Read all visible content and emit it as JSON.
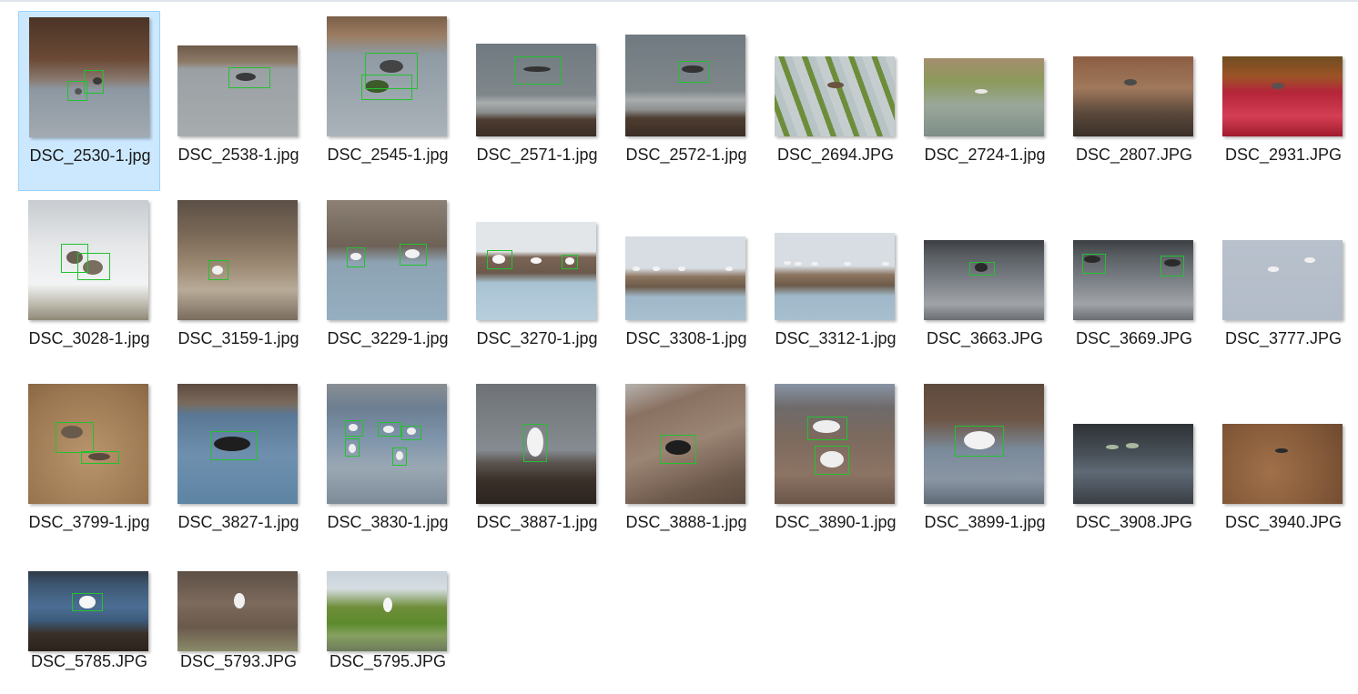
{
  "files": [
    {
      "name": "DSC_2530-1.jpg",
      "selected": true,
      "scene": "brown-rocks-water"
    },
    {
      "name": "DSC_2538-1.jpg",
      "selected": false,
      "scene": "grey-water"
    },
    {
      "name": "DSC_2545-1.jpg",
      "selected": false,
      "scene": "grey-water-duck"
    },
    {
      "name": "DSC_2571-1.jpg",
      "selected": false,
      "scene": "grey-sky-flight"
    },
    {
      "name": "DSC_2572-1.jpg",
      "selected": false,
      "scene": "grey-sky-flight"
    },
    {
      "name": "DSC_2694.JPG",
      "selected": false,
      "scene": "rice-paddy"
    },
    {
      "name": "DSC_2724-1.jpg",
      "selected": false,
      "scene": "reeds-stream"
    },
    {
      "name": "DSC_2807.JPG",
      "selected": false,
      "scene": "brown-grass"
    },
    {
      "name": "DSC_2931.JPG",
      "selected": false,
      "scene": "red-grass"
    },
    {
      "name": "DSC_3028-1.jpg",
      "selected": false,
      "scene": "white-shore"
    },
    {
      "name": "DSC_3159-1.jpg",
      "selected": false,
      "scene": "mudflat"
    },
    {
      "name": "DSC_3229-1.jpg",
      "selected": false,
      "scene": "bank-water"
    },
    {
      "name": "DSC_3270-1.jpg",
      "selected": false,
      "scene": "bank-egrets"
    },
    {
      "name": "DSC_3308-1.jpg",
      "selected": false,
      "scene": "bank-egrets-far"
    },
    {
      "name": "DSC_3312-1.jpg",
      "selected": false,
      "scene": "bank-egrets-far"
    },
    {
      "name": "DSC_3663.JPG",
      "selected": false,
      "scene": "dark-water"
    },
    {
      "name": "DSC_3669.JPG",
      "selected": false,
      "scene": "dark-water"
    },
    {
      "name": "DSC_3777.JPG",
      "selected": false,
      "scene": "blue-grey"
    },
    {
      "name": "DSC_3799-1.jpg",
      "selected": false,
      "scene": "sand"
    },
    {
      "name": "DSC_3827-1.jpg",
      "selected": false,
      "scene": "blue-water"
    },
    {
      "name": "DSC_3830-1.jpg",
      "selected": false,
      "scene": "blue-water-flock"
    },
    {
      "name": "DSC_3887-1.jpg",
      "selected": false,
      "scene": "grey-water-rocks"
    },
    {
      "name": "DSC_3888-1.jpg",
      "selected": false,
      "scene": "rocks-slope"
    },
    {
      "name": "DSC_3890-1.jpg",
      "selected": false,
      "scene": "brown-water"
    },
    {
      "name": "DSC_3899-1.jpg",
      "selected": false,
      "scene": "brown-water-egret"
    },
    {
      "name": "DSC_3908.JPG",
      "selected": false,
      "scene": "dark-rocks"
    },
    {
      "name": "DSC_3940.JPG",
      "selected": false,
      "scene": "pebbles"
    },
    {
      "name": "DSC_5785.JPG",
      "selected": false,
      "scene": "blue-water-egret"
    },
    {
      "name": "DSC_5793.JPG",
      "selected": false,
      "scene": "mud-egret"
    },
    {
      "name": "DSC_5795.JPG",
      "selected": false,
      "scene": "green-egret"
    }
  ]
}
